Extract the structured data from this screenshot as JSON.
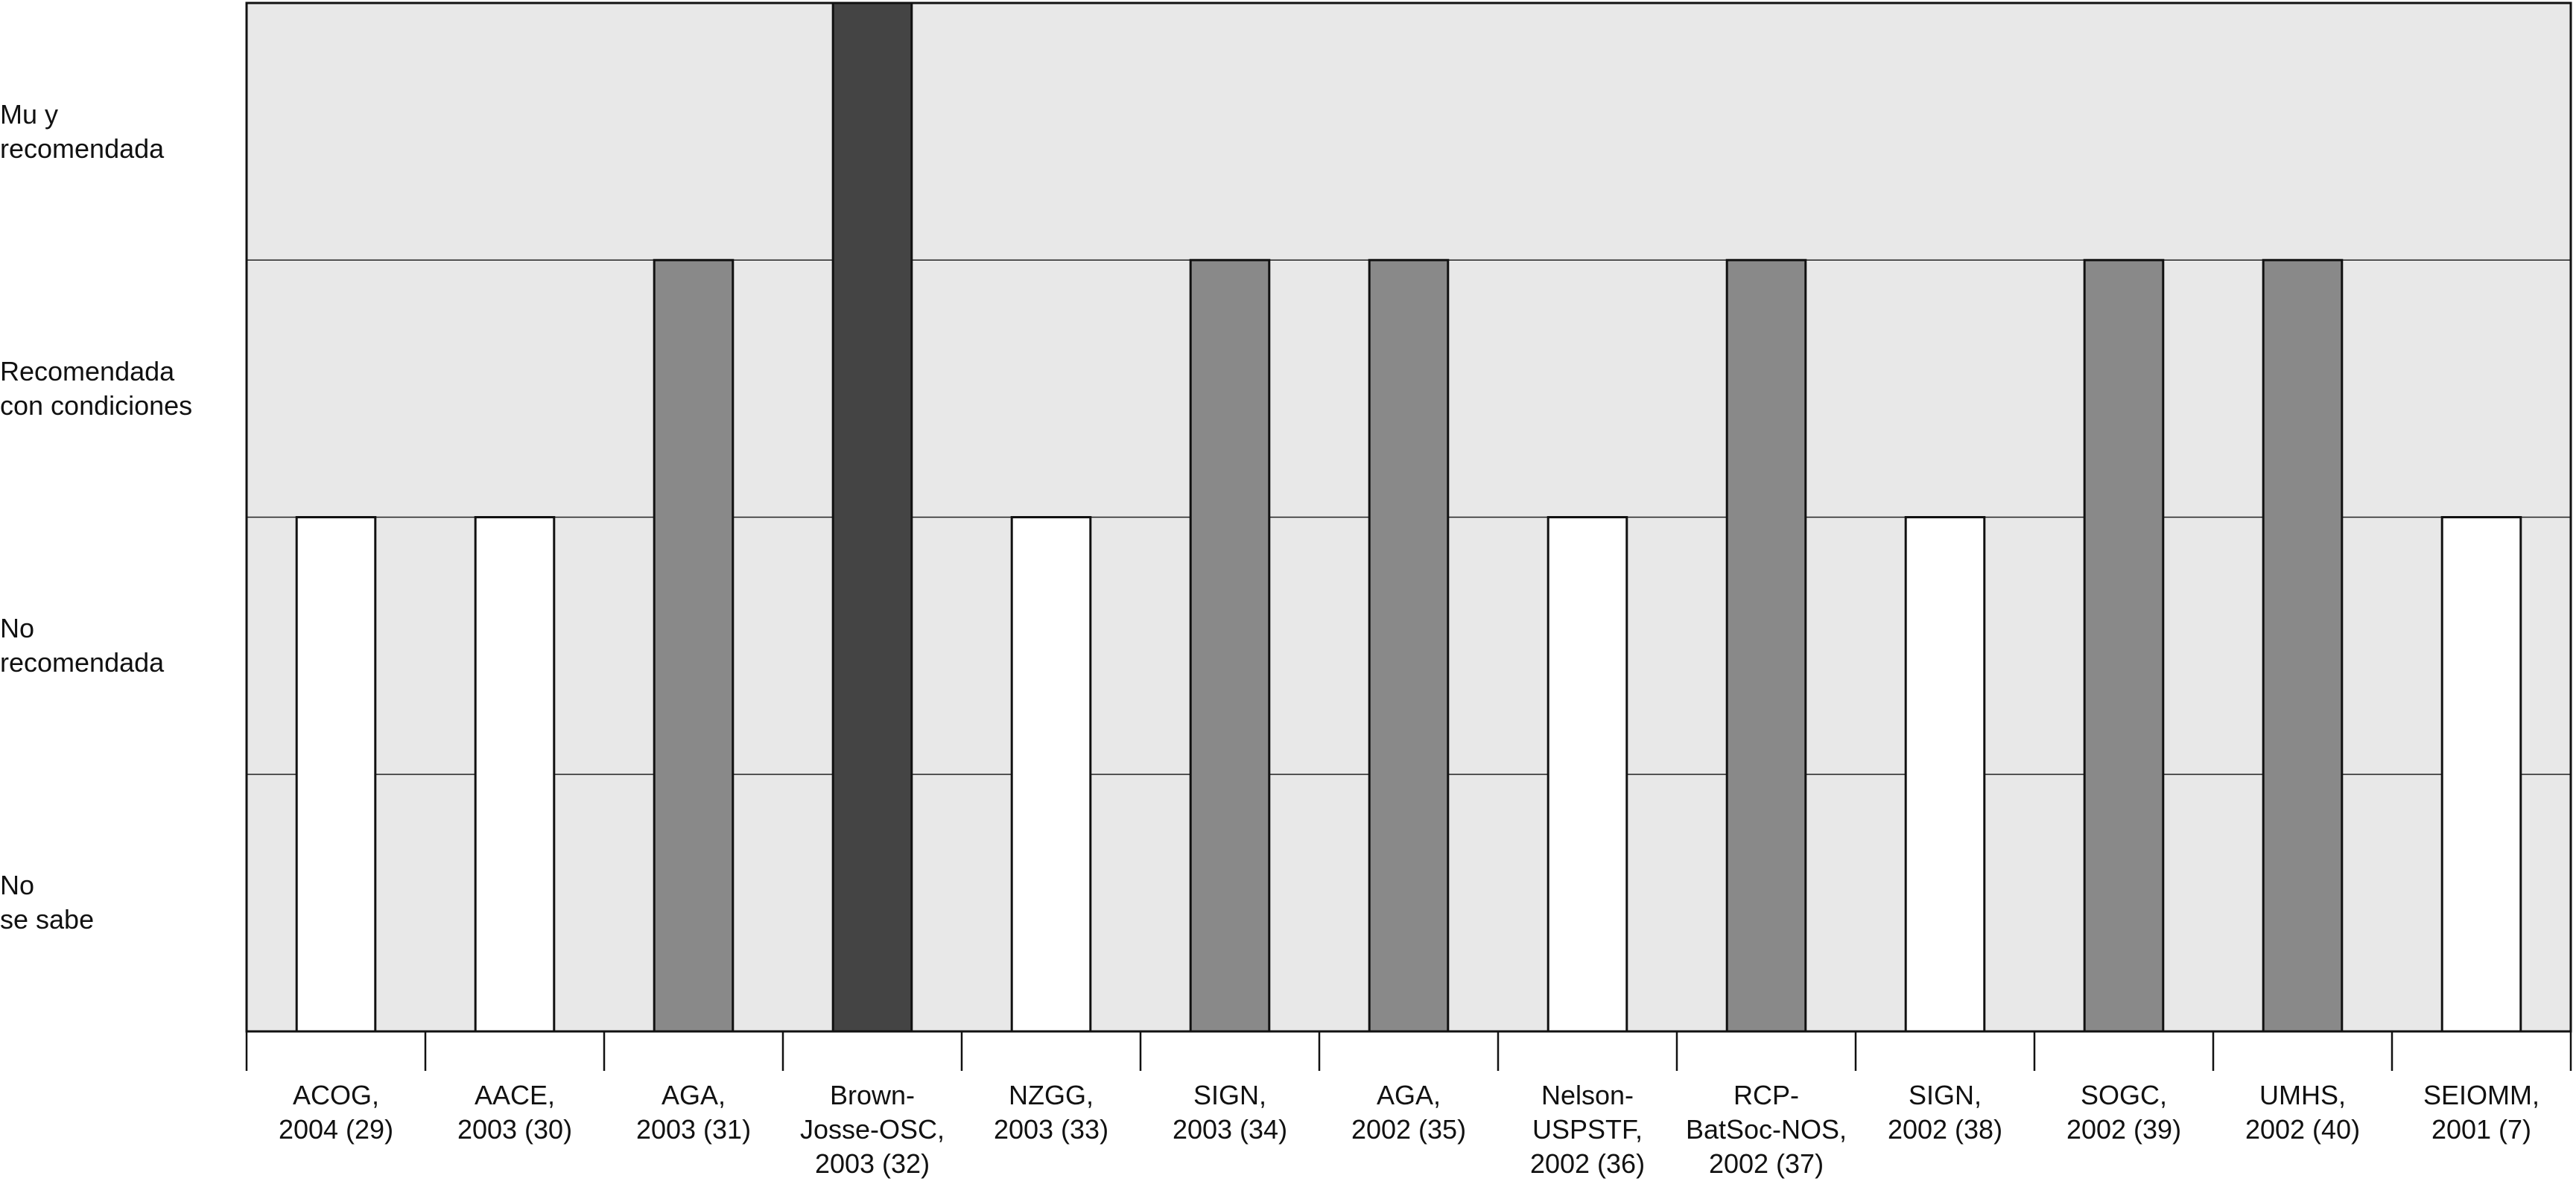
{
  "chart_data": {
    "type": "bar",
    "categories": [
      "ACOG,\n2004 (29)",
      "AACE,\n2003 (30)",
      "AGA,\n2003 (31)",
      "Brown-\nJosse-OSC,\n2003 (32)",
      "NZGG,\n2003 (33)",
      "SIGN,\n2003 (34)",
      "AGA,\n2002 (35)",
      "Nelson-\nUSPSTF,\n2002 (36)",
      "RCP-\nBatSoc-NOS,\n2002 (37)",
      "SIGN,\n2002 (38)",
      "SOGC,\n2002 (39)",
      "UMHS,\n2002 (40)",
      "SEIOMM,\n2001 (7)"
    ],
    "values": [
      2,
      2,
      3,
      4,
      2,
      3,
      3,
      2,
      3,
      2,
      3,
      3,
      2
    ],
    "colors": [
      "#ffffff",
      "#ffffff",
      "#898989",
      "#444444",
      "#ffffff",
      "#898989",
      "#898989",
      "#ffffff",
      "#898989",
      "#ffffff",
      "#898989",
      "#898989",
      "#ffffff"
    ],
    "ylim": [
      0,
      4
    ],
    "yticks": [
      {
        "value": 0.5,
        "label": "No\nse sabe"
      },
      {
        "value": 1.5,
        "label": "No\nrecomendada"
      },
      {
        "value": 2.5,
        "label": "Recomendada\ncon condiciones"
      },
      {
        "value": 3.5,
        "label": "Mu y\nrecomendada"
      }
    ],
    "grid_lines": [
      1,
      2,
      3
    ],
    "background": "#e8e8e8"
  }
}
